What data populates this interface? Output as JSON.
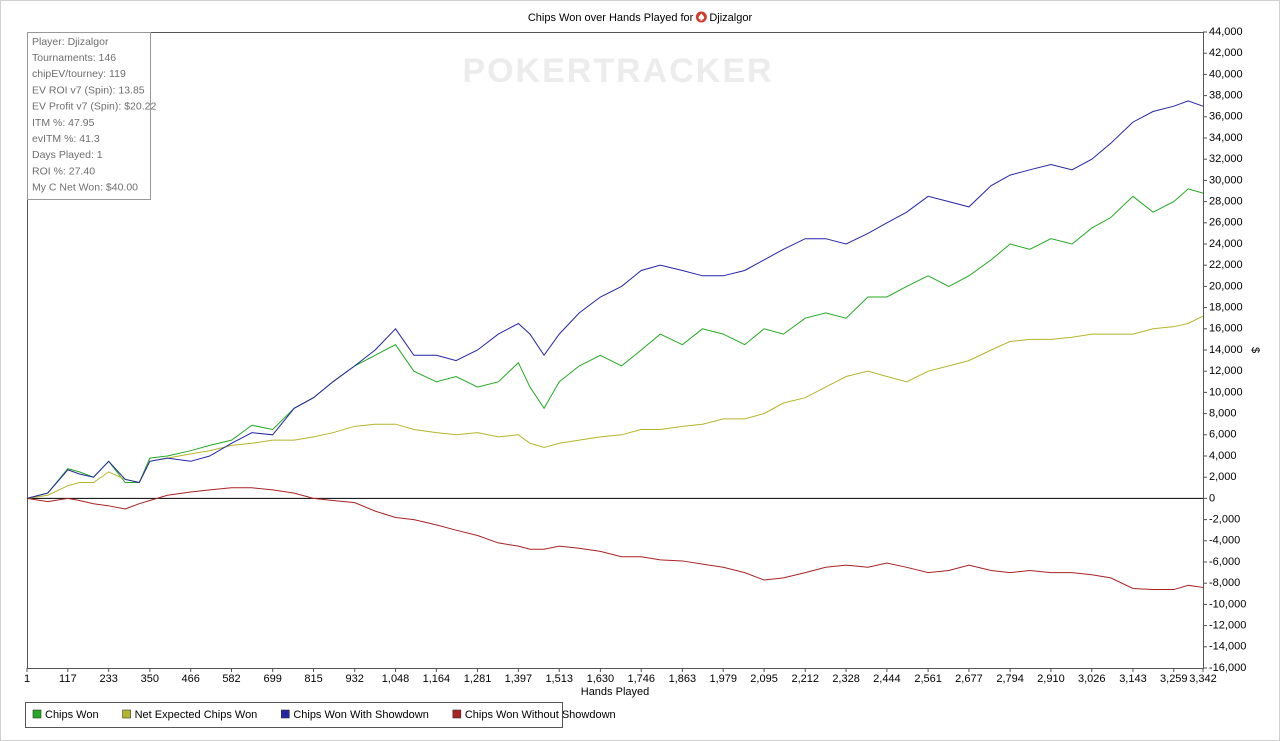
{
  "chart_data": {
    "type": "line",
    "title": "Chips Won over Hands Played for",
    "player": "Djizalgor",
    "watermark": "POKERTRACKER",
    "x_label": "Hands Played",
    "y_label": "$",
    "annotations": [
      "Player: Djizalgor",
      "Tournaments: 146",
      "chipEV/tourney: 119",
      "EV ROI v7 (Spin): 13.85",
      "EV Profit v7 (Spin): $20.22",
      "ITM %: 47.95",
      "evITM %: 41.3",
      "Days Played: 1",
      "ROI %: 27.40",
      "My C Net Won: $40.00"
    ],
    "x": [
      1,
      60,
      117,
      150,
      190,
      233,
      280,
      320,
      350,
      400,
      466,
      520,
      582,
      640,
      699,
      760,
      815,
      870,
      932,
      990,
      1048,
      1100,
      1164,
      1220,
      1281,
      1340,
      1397,
      1430,
      1470,
      1513,
      1570,
      1630,
      1690,
      1746,
      1800,
      1863,
      1920,
      1979,
      2040,
      2095,
      2150,
      2212,
      2270,
      2328,
      2390,
      2444,
      2500,
      2561,
      2620,
      2677,
      2740,
      2794,
      2850,
      2910,
      2970,
      3026,
      3080,
      3143,
      3200,
      3259,
      3300,
      3342
    ],
    "series": [
      {
        "name": "Chips Won",
        "color": "#22aa22",
        "values": [
          0,
          500,
          2800,
          2500,
          2000,
          3500,
          1500,
          1500,
          3800,
          4000,
          4500,
          5000,
          5500,
          6900,
          6500,
          8500,
          9500,
          11000,
          12500,
          13500,
          14500,
          12000,
          11000,
          11500,
          10500,
          11000,
          12800,
          10500,
          8500,
          11000,
          12500,
          13500,
          12500,
          14000,
          15500,
          14500,
          16000,
          15500,
          14500,
          16000,
          15500,
          17000,
          17500,
          17000,
          19000,
          19000,
          20000,
          21000,
          20000,
          21000,
          22500,
          24000,
          23500,
          24500,
          24000,
          25500,
          26500,
          28500,
          27000,
          28000,
          29200,
          28800
        ]
      },
      {
        "name": "Net Expected Chips Won",
        "color": "#b5b52a",
        "values": [
          0,
          300,
          1200,
          1500,
          1500,
          2500,
          1800,
          1500,
          3500,
          3800,
          4200,
          4500,
          5000,
          5200,
          5500,
          5500,
          5800,
          6200,
          6800,
          7000,
          7000,
          6500,
          6200,
          6000,
          6200,
          5800,
          6000,
          5200,
          4800,
          5200,
          5500,
          5800,
          6000,
          6500,
          6500,
          6800,
          7000,
          7500,
          7500,
          8000,
          9000,
          9500,
          10500,
          11500,
          12000,
          11500,
          11000,
          12000,
          12500,
          13000,
          14000,
          14800,
          15000,
          15000,
          15200,
          15500,
          15500,
          15500,
          16000,
          16200,
          16500,
          17200
        ]
      },
      {
        "name": "Chips Won With Showdown",
        "color": "#2424a8",
        "values": [
          0,
          500,
          2700,
          2300,
          2000,
          3500,
          1800,
          1500,
          3500,
          3800,
          3500,
          4000,
          5200,
          6200,
          6000,
          8500,
          9500,
          11000,
          12500,
          14000,
          16000,
          13500,
          13500,
          13000,
          14000,
          15500,
          16500,
          15500,
          13500,
          15500,
          17500,
          19000,
          20000,
          21500,
          22000,
          21500,
          21000,
          21000,
          21500,
          22500,
          23500,
          24500,
          24500,
          24000,
          25000,
          26000,
          27000,
          28500,
          28000,
          27500,
          29500,
          30500,
          31000,
          31500,
          31000,
          32000,
          33500,
          35500,
          36500,
          37000,
          37500,
          37000
        ]
      },
      {
        "name": "Chips Won Without Showdown",
        "color": "#aa2222",
        "values": [
          0,
          -300,
          0,
          -200,
          -500,
          -700,
          -1000,
          -500,
          -200,
          300,
          600,
          800,
          1000,
          1000,
          800,
          500,
          0,
          -200,
          -400,
          -1200,
          -1800,
          -2000,
          -2500,
          -3000,
          -3500,
          -4200,
          -4500,
          -4800,
          -4800,
          -4500,
          -4700,
          -5000,
          -5500,
          -5500,
          -5800,
          -5900,
          -6200,
          -6500,
          -7000,
          -7700,
          -7500,
          -7000,
          -6500,
          -6300,
          -6500,
          -6100,
          -6500,
          -7000,
          -6800,
          -6300,
          -6800,
          -7000,
          -6800,
          -7000,
          -7000,
          -7200,
          -7500,
          -8500,
          -8600,
          -8600,
          -8200,
          -8400
        ]
      }
    ],
    "xlim": [
      1,
      3342
    ],
    "xticks": [
      1,
      117,
      233,
      350,
      466,
      582,
      699,
      815,
      932,
      {
        "value": 1048,
        "label": "1,048"
      },
      {
        "value": 1164,
        "label": "1,164"
      },
      {
        "value": 1281,
        "label": "1,281"
      },
      {
        "value": 1397,
        "label": "1,397"
      },
      {
        "value": 1513,
        "label": "1,513"
      },
      {
        "value": 1630,
        "label": "1,630"
      },
      {
        "value": 1746,
        "label": "1,746"
      },
      {
        "value": 1863,
        "label": "1,863"
      },
      {
        "value": 1979,
        "label": "1,979"
      },
      {
        "value": 2095,
        "label": "2,095"
      },
      {
        "value": 2212,
        "label": "2,212"
      },
      {
        "value": 2328,
        "label": "2,328"
      },
      {
        "value": 2444,
        "label": "2,444"
      },
      {
        "value": 2561,
        "label": "2,561"
      },
      {
        "value": 2677,
        "label": "2,677"
      },
      {
        "value": 2794,
        "label": "2,794"
      },
      {
        "value": 2910,
        "label": "2,910"
      },
      {
        "value": 3026,
        "label": "3,026"
      },
      {
        "value": 3143,
        "label": "3,143"
      },
      {
        "value": 3259,
        "label": "3,259"
      },
      {
        "value": 3342,
        "label": "3,342"
      }
    ],
    "ylim": [
      -16000,
      44000
    ],
    "yticks": [
      {
        "value": 44000,
        "label": "44,000"
      },
      {
        "value": 42000,
        "label": "42,000"
      },
      {
        "value": 40000,
        "label": "40,000"
      },
      {
        "value": 38000,
        "label": "38,000"
      },
      {
        "value": 36000,
        "label": "36,000"
      },
      {
        "value": 34000,
        "label": "34,000"
      },
      {
        "value": 32000,
        "label": "32,000"
      },
      {
        "value": 30000,
        "label": "30,000"
      },
      {
        "value": 28000,
        "label": "28,000"
      },
      {
        "value": 26000,
        "label": "26,000"
      },
      {
        "value": 24000,
        "label": "24,000"
      },
      {
        "value": 22000,
        "label": "22,000"
      },
      {
        "value": 20000,
        "label": "20,000"
      },
      {
        "value": 18000,
        "label": "18,000"
      },
      {
        "value": 16000,
        "label": "16,000"
      },
      {
        "value": 14000,
        "label": "14,000"
      },
      {
        "value": 12000,
        "label": "12,000"
      },
      {
        "value": 10000,
        "label": "10,000"
      },
      {
        "value": 8000,
        "label": "8,000"
      },
      {
        "value": 6000,
        "label": "6,000"
      },
      {
        "value": 4000,
        "label": "4,000"
      },
      {
        "value": 2000,
        "label": "2,000"
      },
      0,
      {
        "value": -2000,
        "label": "-2,000"
      },
      {
        "value": -4000,
        "label": "-4,000"
      },
      {
        "value": -6000,
        "label": "-6,000"
      },
      {
        "value": -8000,
        "label": "-8,000"
      },
      {
        "value": -10000,
        "label": "-10,000"
      },
      {
        "value": -12000,
        "label": "-12,000"
      },
      {
        "value": -14000,
        "label": "-14,000"
      },
      {
        "value": -16000,
        "label": "-16,000"
      }
    ],
    "zero_line": true,
    "legend": "bottom-left"
  }
}
